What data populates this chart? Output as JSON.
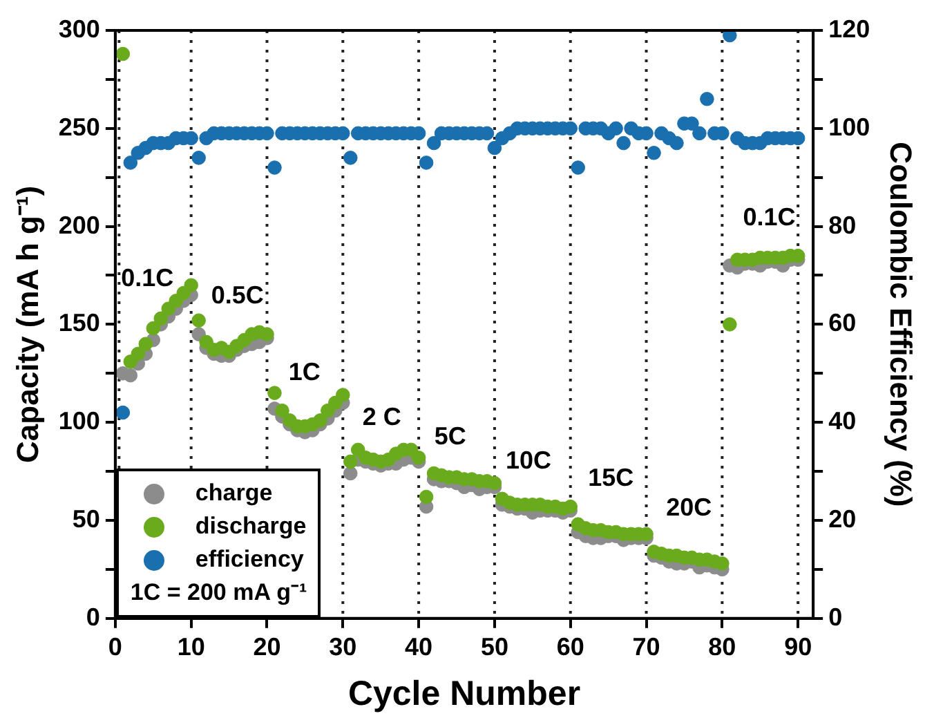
{
  "chart_data": {
    "type": "scatter",
    "xlabel": "Cycle Number",
    "ylabel": "Capacity (mA h g⁻¹)",
    "y2label": "Coulombic Efficiency (%)",
    "x": [
      1,
      2,
      3,
      4,
      5,
      6,
      7,
      8,
      9,
      10,
      11,
      12,
      13,
      14,
      15,
      16,
      17,
      18,
      19,
      20,
      21,
      22,
      23,
      24,
      25,
      26,
      27,
      28,
      29,
      30,
      31,
      32,
      33,
      34,
      35,
      36,
      37,
      38,
      39,
      40,
      41,
      42,
      43,
      44,
      45,
      46,
      47,
      48,
      49,
      50,
      51,
      52,
      53,
      54,
      55,
      56,
      57,
      58,
      59,
      60,
      61,
      62,
      63,
      64,
      65,
      66,
      67,
      68,
      69,
      70,
      71,
      72,
      73,
      74,
      75,
      76,
      77,
      78,
      79,
      80,
      81,
      82,
      83,
      84,
      85,
      86,
      87,
      88,
      89,
      90
    ],
    "series": [
      {
        "name": "charge",
        "color": "#8c8c8c",
        "values": [
          125,
          124,
          130,
          135,
          142,
          150,
          154,
          158,
          162,
          165,
          145,
          138,
          135,
          134,
          134,
          137,
          139,
          140,
          141,
          143,
          107,
          103,
          99,
          96,
          95,
          96,
          99,
          102,
          106,
          110,
          74,
          81,
          80,
          79,
          78,
          79,
          79,
          81,
          82,
          80,
          57,
          71,
          70,
          70,
          69,
          67,
          68,
          66,
          67,
          67,
          58,
          57,
          56,
          56,
          54,
          55,
          55,
          55,
          54,
          55,
          44,
          42,
          41,
          41,
          42,
          42,
          40,
          41,
          41,
          41,
          32,
          31,
          29,
          28,
          28,
          29,
          26,
          27,
          26,
          25,
          180,
          179,
          181,
          181,
          180,
          182,
          182,
          180,
          183,
          183
        ]
      },
      {
        "name": "discharge",
        "color": "#6aab1e",
        "values": [
          288,
          131,
          135,
          140,
          148,
          153,
          158,
          162,
          166,
          170,
          152,
          141,
          137,
          138,
          136,
          139,
          142,
          145,
          146,
          145,
          115,
          106,
          101,
          98,
          98,
          99,
          101,
          106,
          110,
          114,
          80,
          86,
          82,
          81,
          80,
          81,
          84,
          86,
          86,
          82,
          62,
          74,
          73,
          72,
          72,
          71,
          71,
          70,
          70,
          69,
          61,
          59,
          58,
          58,
          58,
          58,
          57,
          57,
          56,
          57,
          48,
          46,
          45,
          45,
          44,
          44,
          43,
          43,
          43,
          43,
          34,
          33,
          32,
          32,
          31,
          31,
          30,
          30,
          29,
          28,
          150,
          183,
          183,
          183,
          184,
          184,
          184,
          184,
          185,
          185
        ]
      },
      {
        "name": "efficiency",
        "color": "#1a6faf",
        "axis": "y2",
        "values": [
          42,
          93,
          95,
          96,
          97,
          97,
          97,
          98,
          98,
          98,
          94,
          98,
          99,
          99,
          99,
          99,
          99,
          99,
          99,
          99,
          92,
          99,
          99,
          99,
          99,
          99,
          99,
          99,
          99,
          99,
          94,
          99,
          99,
          99,
          99,
          99,
          99,
          99,
          99,
          99,
          93,
          97,
          99,
          99,
          99,
          99,
          99,
          99,
          99,
          96,
          98,
          99,
          100,
          100,
          100,
          100,
          100,
          100,
          100,
          100,
          92,
          100,
          100,
          100,
          99,
          100,
          97,
          100,
          99,
          99,
          95,
          99,
          98,
          97,
          101,
          101,
          99,
          106,
          99,
          99,
          119,
          98,
          97,
          97,
          97,
          98,
          98,
          98,
          98,
          98
        ]
      }
    ],
    "xlim": [
      0,
      92
    ],
    "xticks": [
      0,
      10,
      20,
      30,
      40,
      50,
      60,
      70,
      80,
      90
    ],
    "ylim": [
      0,
      300
    ],
    "yticks": [
      0,
      {
        "value": 25,
        "label": null
      },
      50,
      {
        "value": 75,
        "label": null
      },
      100,
      {
        "value": 125,
        "label": null
      },
      150,
      {
        "value": 175,
        "label": null
      },
      200,
      {
        "value": 225,
        "label": null
      },
      250,
      {
        "value": 275,
        "label": null
      },
      300
    ],
    "y2lim": [
      0,
      120
    ],
    "y2ticks": [
      0,
      {
        "value": 10,
        "label": null
      },
      20,
      {
        "value": 30,
        "label": null
      },
      40,
      {
        "value": 50,
        "label": null
      },
      60,
      {
        "value": 70,
        "label": null
      },
      80,
      {
        "value": 90,
        "label": null
      },
      100,
      {
        "value": 110,
        "label": null
      },
      120
    ],
    "ref_lines": [
      {
        "axis": "x",
        "value": 0.5,
        "label": null,
        "color": "#222222",
        "line_style": "dotted"
      },
      {
        "axis": "x",
        "value": 10,
        "label": null,
        "color": "#222222",
        "line_style": "dotted"
      },
      {
        "axis": "x",
        "value": 20,
        "label": null,
        "color": "#222222",
        "line_style": "dotted"
      },
      {
        "axis": "x",
        "value": 30,
        "label": null,
        "color": "#222222",
        "line_style": "dotted"
      },
      {
        "axis": "x",
        "value": 40,
        "label": null,
        "color": "#222222",
        "line_style": "dotted"
      },
      {
        "axis": "x",
        "value": 50,
        "label": null,
        "color": "#222222",
        "line_style": "dotted"
      },
      {
        "axis": "x",
        "value": 60,
        "label": null,
        "color": "#222222",
        "line_style": "dotted"
      },
      {
        "axis": "x",
        "value": 70,
        "label": null,
        "color": "#222222",
        "line_style": "dotted"
      },
      {
        "axis": "x",
        "value": 80,
        "label": null,
        "color": "#222222",
        "line_style": "dotted"
      },
      {
        "axis": "x",
        "value": 90,
        "label": null,
        "color": "#222222",
        "line_style": "dotted"
      }
    ],
    "annotations": [
      "0.1C",
      "0.5C",
      "1C",
      "2 C",
      "5C",
      "10C",
      "15C",
      "20C",
      "0.1C",
      "1C = 200 mA g⁻¹"
    ],
    "legend": "bottom left",
    "grid": false,
    "marker": "circle"
  }
}
